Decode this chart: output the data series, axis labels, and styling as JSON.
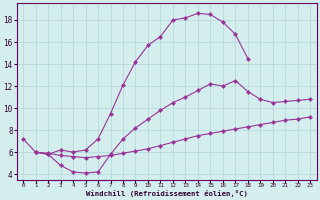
{
  "xlabel": "Windchill (Refroidissement éolien,°C)",
  "bg_color": "#d4eeee",
  "line_color": "#993399",
  "grid_color": "#b8dada",
  "ylim": [
    3.5,
    19.5
  ],
  "xlim": [
    -0.5,
    23.5
  ],
  "yticks": [
    4,
    6,
    8,
    10,
    12,
    14,
    16,
    18
  ],
  "xticks": [
    0,
    1,
    2,
    3,
    4,
    5,
    6,
    7,
    8,
    9,
    10,
    11,
    12,
    13,
    14,
    15,
    16,
    17,
    18,
    19,
    20,
    21,
    22,
    23
  ],
  "curve1_x": [
    0,
    1,
    2,
    3,
    4,
    5,
    6,
    7,
    8,
    9,
    10,
    11,
    12,
    13,
    14,
    15,
    16,
    17,
    18
  ],
  "curve1_y": [
    7.2,
    6.0,
    5.8,
    6.2,
    6.0,
    6.2,
    7.2,
    9.5,
    12.1,
    14.2,
    15.7,
    16.5,
    18.0,
    18.2,
    18.6,
    18.5,
    17.8,
    16.7,
    14.5
  ],
  "curve2_x": [
    1,
    2,
    3,
    4,
    5,
    6,
    7,
    8,
    9,
    10,
    11,
    12,
    13,
    14,
    15,
    16,
    17,
    18,
    19,
    20,
    21,
    22,
    23
  ],
  "curve2_y": [
    6.0,
    5.8,
    4.8,
    4.2,
    4.1,
    4.2,
    5.8,
    7.2,
    8.2,
    9.0,
    9.8,
    10.5,
    11.0,
    11.6,
    12.2,
    12.0,
    12.5,
    11.5,
    10.8,
    10.5,
    10.6,
    10.7,
    10.8
  ],
  "curve3_x": [
    1,
    2,
    3,
    4,
    5,
    6,
    7,
    8,
    9,
    10,
    11,
    12,
    13,
    14,
    15,
    16,
    17,
    18,
    19,
    20,
    21,
    22,
    23
  ],
  "curve3_y": [
    6.0,
    5.9,
    5.7,
    5.6,
    5.5,
    5.6,
    5.7,
    5.9,
    6.1,
    6.3,
    6.6,
    6.9,
    7.2,
    7.5,
    7.7,
    7.9,
    8.1,
    8.3,
    8.5,
    8.7,
    8.9,
    9.0,
    9.2
  ]
}
